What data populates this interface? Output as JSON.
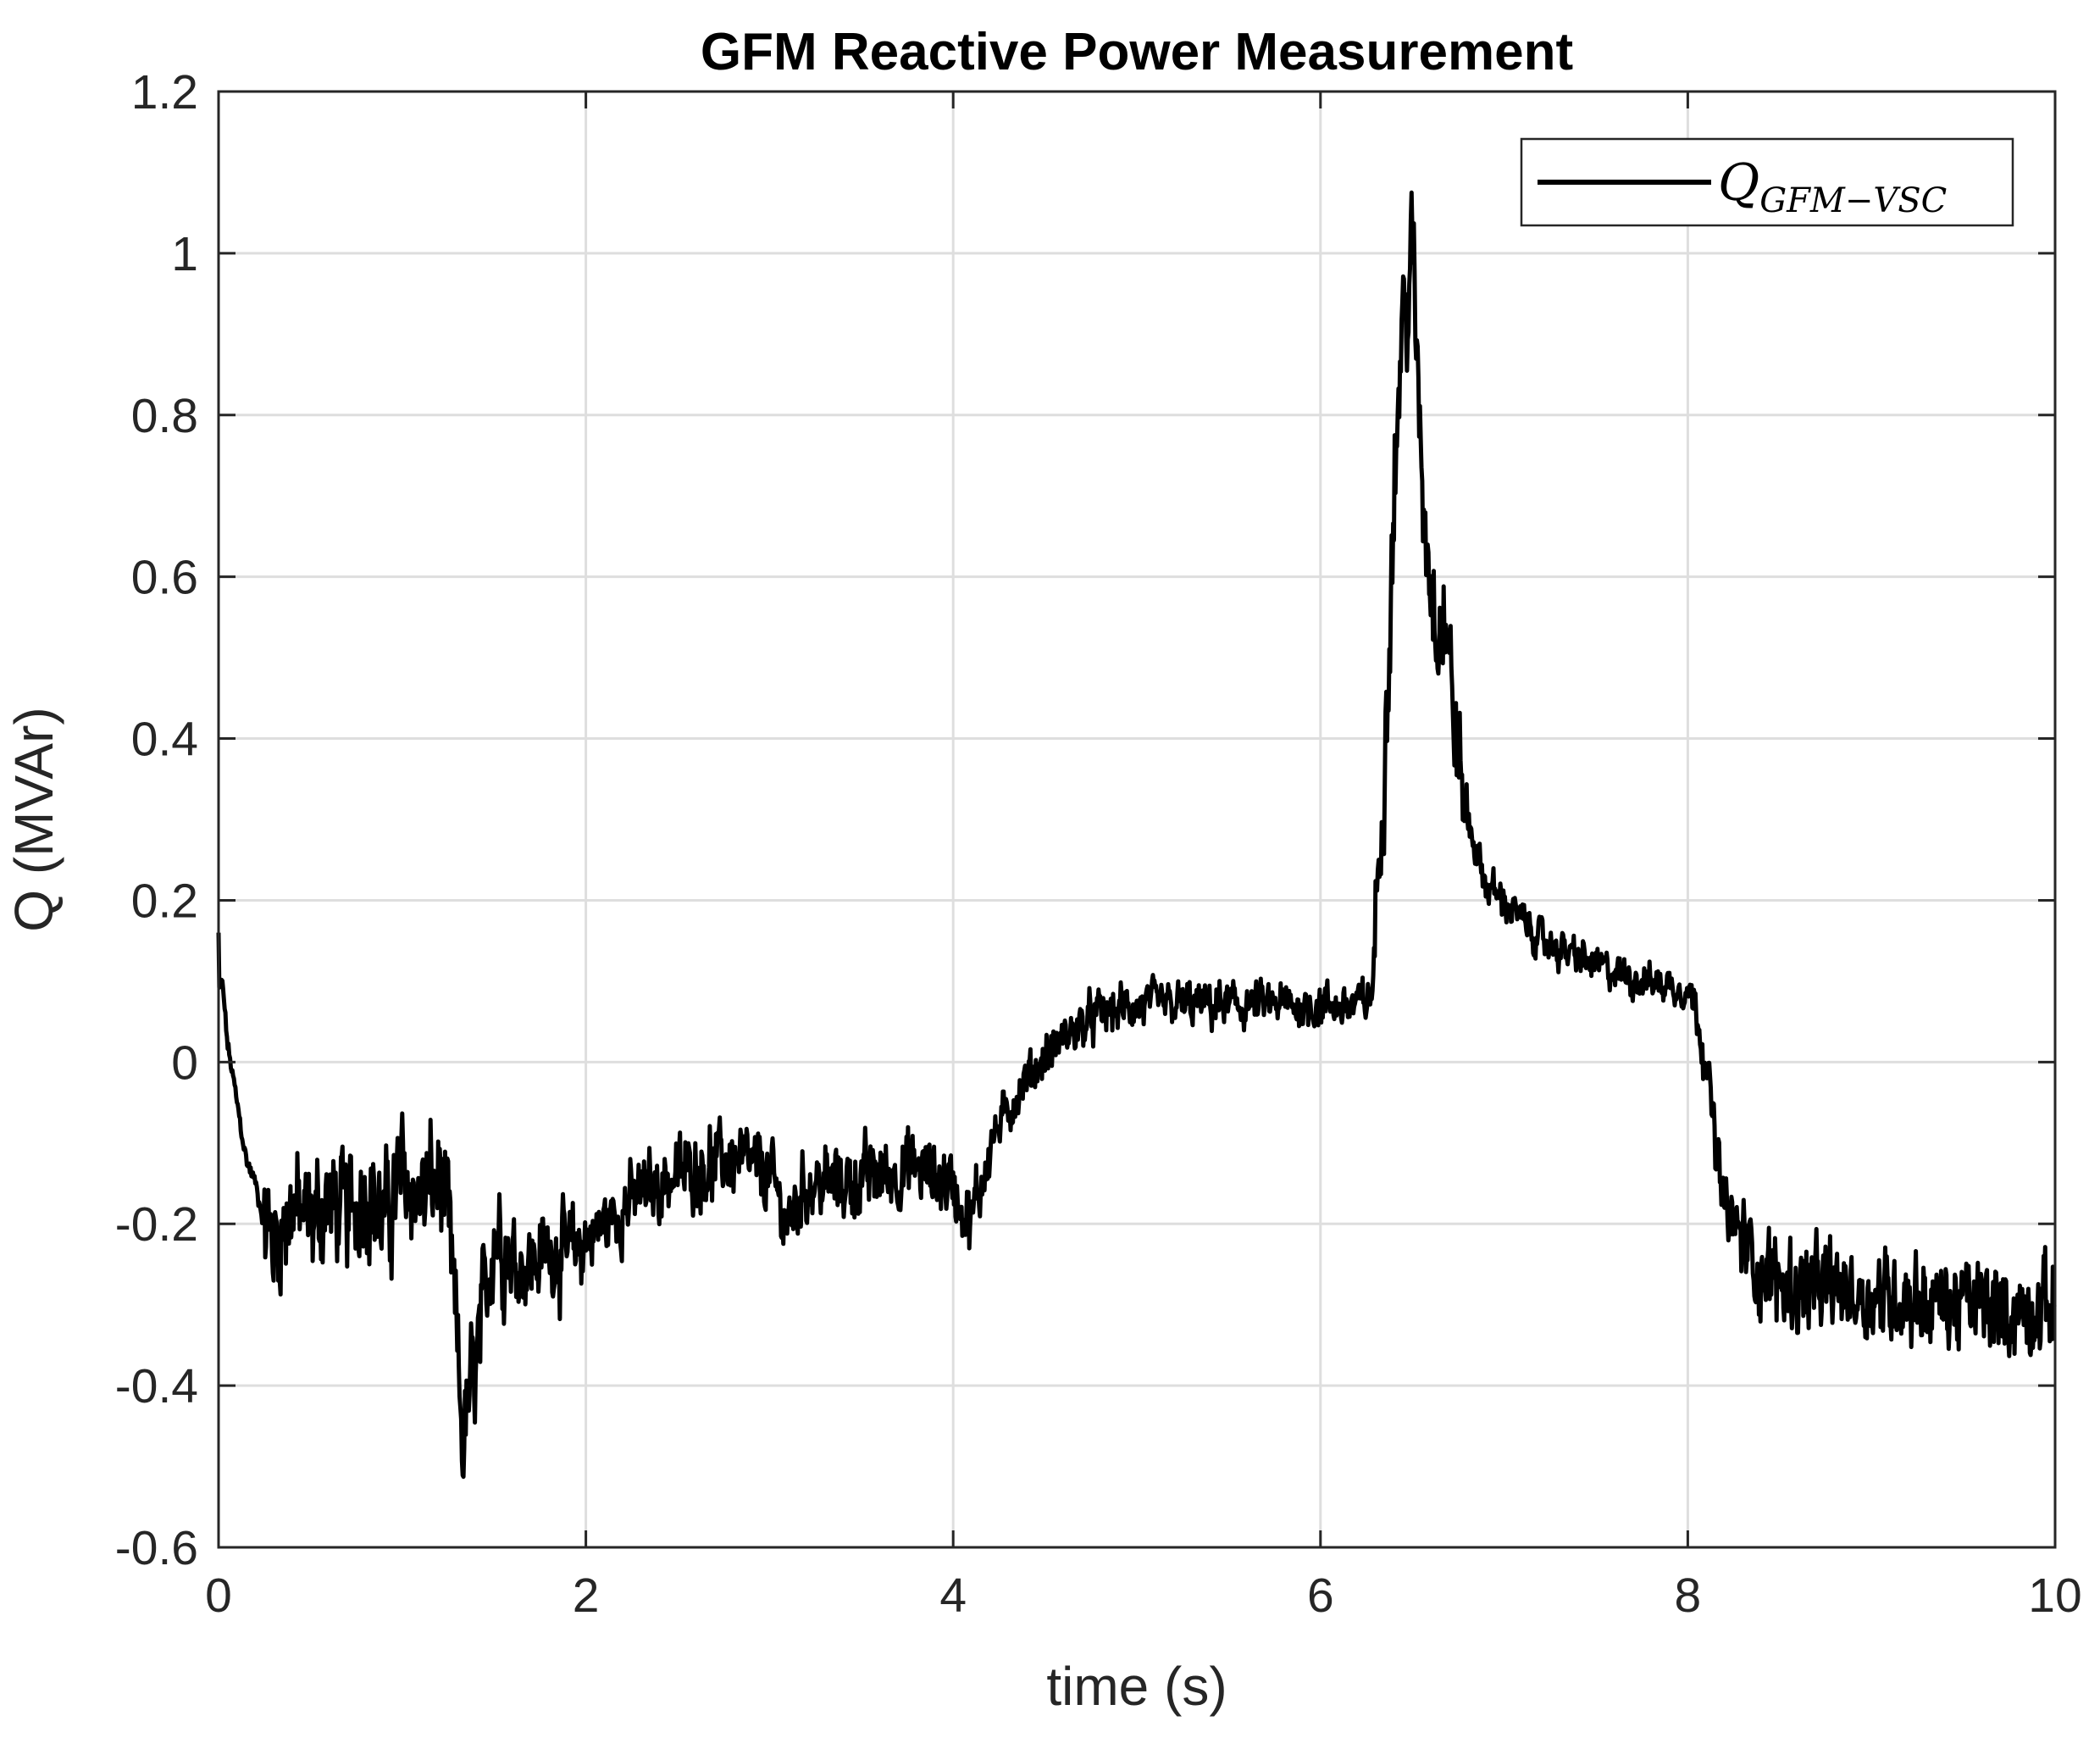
{
  "chart_data": {
    "type": "line",
    "title": "GFM Reactive Power Measurement",
    "xlabel": "time (s)",
    "ylabel": "Q (MVAr)",
    "xlim": [
      0,
      10
    ],
    "ylim": [
      -0.6,
      1.2
    ],
    "xticks": [
      "0",
      "2",
      "4",
      "6",
      "8",
      "10"
    ],
    "yticks": [
      "-0.6",
      "-0.4",
      "-0.2",
      "0",
      "0.2",
      "0.4",
      "0.6",
      "0.8",
      "1",
      "1.2"
    ],
    "grid": true,
    "legend_position": "top-right",
    "legend": {
      "label_main": "Q",
      "label_sub": "GFM−VSC"
    },
    "series": [
      {
        "color": "#000000",
        "x": [
          0,
          0.02,
          0.05,
          0.1,
          0.15,
          0.2,
          0.25,
          0.3,
          0.4,
          0.5,
          0.6,
          0.7,
          0.8,
          0.9,
          1.0,
          1.1,
          1.2,
          1.25,
          1.3,
          1.33,
          1.36,
          1.4,
          1.45,
          1.5,
          1.6,
          1.7,
          1.8,
          1.9,
          2.0,
          2.2,
          2.4,
          2.6,
          2.8,
          3.0,
          3.1,
          3.2,
          3.4,
          3.6,
          3.8,
          4.0,
          4.1,
          4.2,
          4.4,
          4.6,
          4.8,
          5.0,
          5.2,
          5.4,
          5.6,
          5.8,
          6.0,
          6.2,
          6.28,
          6.32,
          6.36,
          6.4,
          6.44,
          6.48,
          6.5,
          6.52,
          6.56,
          6.6,
          6.64,
          6.68,
          6.72,
          6.76,
          6.8,
          6.9,
          7.0,
          7.2,
          7.4,
          7.6,
          7.8,
          8.0,
          8.05,
          8.1,
          8.15,
          8.2,
          8.3,
          8.4,
          8.6,
          8.8,
          9.0,
          9.2,
          9.4,
          9.6,
          9.8,
          10.0
        ],
        "y": [
          0.08,
          0.1,
          0.02,
          -0.05,
          -0.12,
          -0.15,
          -0.2,
          -0.22,
          -0.18,
          -0.2,
          -0.17,
          -0.19,
          -0.15,
          -0.2,
          -0.14,
          -0.17,
          -0.14,
          -0.2,
          -0.35,
          -0.48,
          -0.42,
          -0.38,
          -0.3,
          -0.2,
          -0.24,
          -0.25,
          -0.23,
          -0.24,
          -0.22,
          -0.18,
          -0.15,
          -0.13,
          -0.12,
          -0.14,
          -0.2,
          -0.15,
          -0.15,
          -0.14,
          -0.13,
          -0.15,
          -0.2,
          -0.1,
          -0.02,
          0.03,
          0.06,
          0.07,
          0.07,
          0.07,
          0.07,
          0.07,
          0.07,
          0.07,
          0.08,
          0.25,
          0.45,
          0.7,
          0.9,
          0.95,
          1.0,
          0.9,
          0.7,
          0.6,
          0.55,
          0.55,
          0.45,
          0.35,
          0.3,
          0.22,
          0.2,
          0.15,
          0.13,
          0.11,
          0.1,
          0.09,
          0.07,
          0.0,
          -0.1,
          -0.18,
          -0.22,
          -0.26,
          -0.28,
          -0.28,
          -0.29,
          -0.29,
          -0.3,
          -0.3,
          -0.31,
          -0.3
        ]
      }
    ]
  }
}
